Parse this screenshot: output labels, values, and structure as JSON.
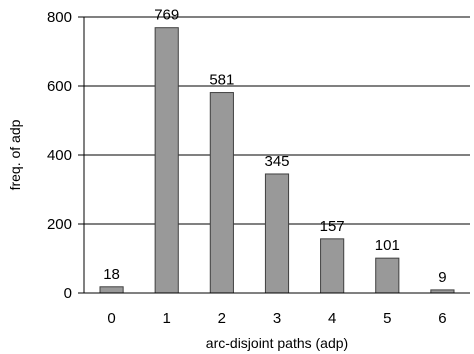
{
  "chart_data": {
    "type": "bar",
    "categories": [
      "0",
      "1",
      "2",
      "3",
      "4",
      "5",
      "6"
    ],
    "values": [
      18,
      769,
      581,
      345,
      157,
      101,
      9
    ],
    "data_labels": [
      "18",
      "769",
      "581",
      "345",
      "157",
      "101",
      "9"
    ],
    "xlabel": "arc-disjoint paths (adp)",
    "ylabel": "freq. of adp",
    "ylim": [
      0,
      800
    ],
    "yticks": [
      0,
      200,
      400,
      600,
      800
    ],
    "ytick_labels": [
      "0",
      "200",
      "400",
      "600",
      "800"
    ],
    "grid": "horizontal",
    "legend": "none",
    "colors": {
      "bar_fill": "#999999",
      "bar_stroke": "#404040",
      "grid": "#000000",
      "axis": "#000000"
    }
  }
}
